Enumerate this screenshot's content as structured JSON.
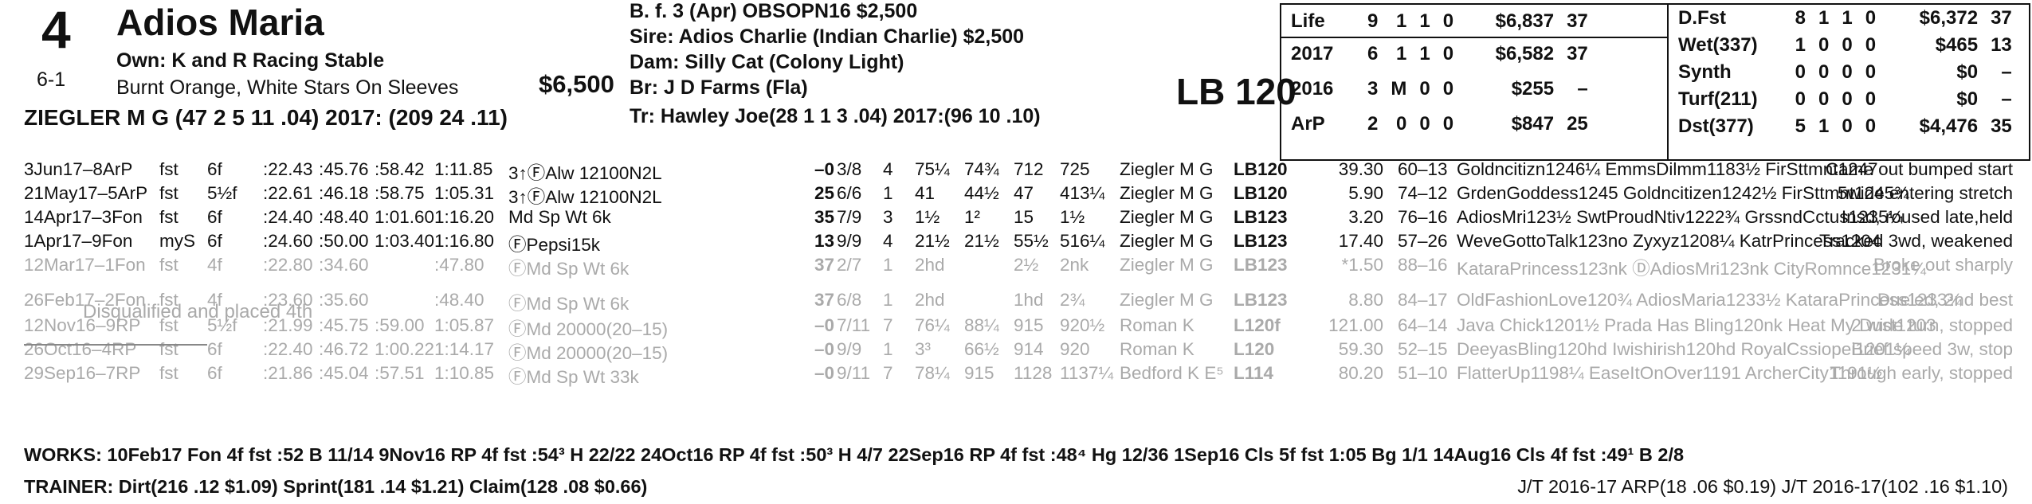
{
  "header": {
    "program_number": "4",
    "horse_name": "Adios Maria",
    "morning_line": "6-1",
    "owner": "Own: K and R Racing Stable",
    "silks": "Burnt Orange, White Stars On Sleeves",
    "price": "$6,500",
    "jockey": "ZIEGLER M G (47 2 5 11 .04) 2017: (209 24 .11)",
    "breeding_line": "B. f. 3 (Apr) OBSOPN16 $2,500",
    "sire": "Sire: Adios Charlie (Indian Charlie) $2,500",
    "dam": "Dam: Silly Cat (Colony Light)",
    "breeder": "Br:   J D Farms (Fla)",
    "trainer_line": "Tr:    Hawley Joe(28 1 1 3 .04)  2017:(96 10 .10)",
    "med_weight": "LB 120"
  },
  "record_left": [
    {
      "label": "Life",
      "starts": "9",
      "w": "1",
      "p": "1",
      "s": "0",
      "earn": "$6,837",
      "spd": "37"
    },
    {
      "label": "2017",
      "starts": "6",
      "w": "1",
      "p": "1",
      "s": "0",
      "earn": "$6,582",
      "spd": "37"
    },
    {
      "label": "2016",
      "starts": "3",
      "w": "M",
      "p": "0",
      "s": "0",
      "earn": "$255",
      "spd": "–"
    },
    {
      "label": "ArP",
      "starts": "2",
      "w": "0",
      "p": "0",
      "s": "0",
      "earn": "$847",
      "spd": "25"
    }
  ],
  "record_right": [
    {
      "label": "D.Fst",
      "starts": "8",
      "w": "1",
      "p": "1",
      "s": "0",
      "earn": "$6,372",
      "spd": "37"
    },
    {
      "label": "Wet(337)",
      "starts": "1",
      "w": "0",
      "p": "0",
      "s": "0",
      "earn": "$465",
      "spd": "13"
    },
    {
      "label": "Synth",
      "starts": "0",
      "w": "0",
      "p": "0",
      "s": "0",
      "earn": "$0",
      "spd": "–"
    },
    {
      "label": "Turf(211)",
      "starts": "0",
      "w": "0",
      "p": "0",
      "s": "0",
      "earn": "$0",
      "spd": "–"
    },
    {
      "label": "Dst(377)",
      "starts": "5",
      "w": "1",
      "p": "0",
      "s": "0",
      "earn": "$4,476",
      "spd": "35"
    }
  ],
  "past_performances": [
    {
      "date": "3Jun17–8ArP",
      "trk": "fst",
      "dist": "6f",
      "f1": ":22.43",
      ":f2": "",
      "f2": ":45.76",
      "f3": ":58.42",
      "fin": "1:11.85",
      "race": "3↑ⒻAlw 12100N2L",
      "bsf": "–0",
      "pp": "3/8",
      "st": "4",
      "c1": "75¼",
      "c2": "74¾",
      "str": "712",
      "fn": "725",
      "jock": "Ziegler M G",
      "med": "LB120",
      "odds": "39.30",
      "pace": "60–13",
      "top3": "Goldncitizn1246¼ EmmsDilmm1183½ FirSttmnt1247",
      "comment": "Came out bumped start",
      "gray": false
    },
    {
      "date": "21May17–5ArP",
      "trk": "fst",
      "dist": "5½f",
      "f1": ":22.61",
      "f2": ":46.18",
      "f3": ":58.75",
      "fin": "1:05.31",
      "race": "3↑ⒻAlw 12100N2L",
      "bsf": "25",
      "pp": "6/6",
      "st": "1",
      "c1": "41",
      "c2": "44½",
      "str": "47",
      "fn": "413¼",
      "jock": "Ziegler M G",
      "med": "LB120",
      "odds": "5.90",
      "pace": "74–12",
      "top3": "GrdenGoddess1245 Goldncitizen1242½ FirSttmnt1245¾",
      "comment": "5wide entering stretch",
      "gray": false
    },
    {
      "date": "14Apr17–3Fon",
      "trk": "fst",
      "dist": "6f",
      "f1": ":24.40",
      "f2": ":48.40",
      "f3": "1:01.60",
      "fin": "1:16.20",
      "race": "Md Sp Wt 6k",
      "bsf": "35",
      "pp": "7/9",
      "st": "3",
      "c1": "1½",
      "c2": "1²",
      "str": "15",
      "fn": "1½",
      "jock": "Ziegler M G",
      "med": "LB123",
      "odds": "3.20",
      "pace": "76–16",
      "top3": "AdiosMri123½ SwtProudNtiv1222¾ GrssndCctus1235¼",
      "comment": "Insd, roused late,held",
      "gray": false
    },
    {
      "date": "1Apr17–9Fon",
      "trk": "myS",
      "dist": "6f",
      "f1": ":24.60",
      "f2": ":50.00",
      "f3": "1:03.40",
      "fin": "1:16.80",
      "race": "ⒻPepsi15k",
      "bsf": "13",
      "pp": "9/9",
      "st": "4",
      "c1": "21½",
      "c2": "21½",
      "str": "55½",
      "fn": "516¼",
      "jock": "Ziegler M G",
      "med": "LB123",
      "odds": "17.40",
      "pace": "57–26",
      "top3": "WeveGottoTalk123no Zyxyz1208¼ KatrPrincess1204",
      "comment": "Tracked 3wd, weakened",
      "gray": false
    },
    {
      "date": "12Mar17–1Fon",
      "trk": "fst",
      "dist": "4f",
      "f1": ":22.80",
      "f2": ":34.60",
      "f3": "",
      "fin": ":47.80",
      "race": "ⒻMd Sp Wt 6k",
      "bsf": "37",
      "pp": "2/7",
      "st": "1",
      "c1": "2hd",
      "c2": "",
      "str": "2½",
      "fn": "2nk",
      "jock": "Ziegler M G",
      "med": "LB123",
      "odds": "*1.50",
      "pace": "88–16",
      "top3": "KataraPrincess123nk ⒹAdiosMri123nk CityRomnce1231¼",
      "comment": "Broke out sharply",
      "gray": true
    },
    {
      "date": "26Feb17–2Fon",
      "trk": "fst",
      "dist": "4f",
      "f1": ":23.60",
      "f2": ":35.60",
      "f3": "",
      "fin": ":48.40",
      "race": "ⒻMd Sp Wt 6k",
      "bsf": "37",
      "pp": "6/8",
      "st": "1",
      "c1": "2hd",
      "c2": "",
      "str": "1hd",
      "fn": "2¾",
      "jock": "Ziegler M G",
      "med": "LB123",
      "odds": "8.80",
      "pace": "84–17",
      "top3": "OldFashionLove120¾ AdiosMaria1233½ KataraPrincess1233¾",
      "comment": "Dueled, 2nd best",
      "gray": true
    },
    {
      "date": "12Nov16–9RP",
      "trk": "fst",
      "dist": "5½f",
      "f1": ":21.99",
      "f2": ":45.75",
      "f3": ":59.00",
      "fin": "1:05.87",
      "race": "ⒻMd 20000(20–15)",
      "bsf": "–0",
      "pp": "7/11",
      "st": "7",
      "c1": "76¼",
      "c2": "88¼",
      "str": "915",
      "fn": "920½",
      "jock": "Roman K",
      "med": "L120f",
      "odds": "121.00",
      "pace": "64–14",
      "top3": "Java Chick1201½ Prada Has Bling120nk Heat My Dust1203",
      "comment": "2 wide turn, stopped",
      "gray": true
    },
    {
      "date": "26Oct16–4RP",
      "trk": "fst",
      "dist": "6f",
      "f1": ":22.40",
      "f2": ":46.72",
      "f3": "1:00.22",
      "fin": "1:14.17",
      "race": "ⒻMd 20000(20–15)",
      "bsf": "–0",
      "pp": "9/9",
      "st": "1",
      "c1": "3³",
      "c2": "66½",
      "str": "914",
      "fn": "920",
      "jock": "Roman K",
      "med": "L120",
      "odds": "59.30",
      "pace": "52–15",
      "top3": "DeeyasBling120hd Iwishirish120hd RoyalCssiopei1201¼",
      "comment": "Brief speed 3w, stop",
      "gray": true
    },
    {
      "date": "29Sep16–7RP",
      "trk": "fst",
      "dist": "6f",
      "f1": ":21.86",
      "f2": ":45.04",
      "f3": ":57.51",
      "fin": "1:10.85",
      "race": "ⒻMd Sp Wt 33k",
      "bsf": "–0",
      "pp": "9/11",
      "st": "7",
      "c1": "78¼",
      "c2": "915",
      "str": "1128",
      "fn": "1137¼",
      "jock": "Bedford K E⁵",
      "med": "L114",
      "odds": "80.20",
      "pace": "51–10",
      "top3": "FlatterUp1198¼ EaseItOnOver1191 ArcherCity1191½",
      "comment": "Through early, stopped",
      "gray": true
    }
  ],
  "disqualified_note": "Disqualified and placed 4th",
  "works": "WORKS:    10Feb17 Fon 4f fst :52 B 11/14   9Nov16 RP 4f fst :54³ H 22/22   24Oct16 RP 4f fst :50³ H 4/7   22Sep16 RP 4f fst :48⁴ Hg 12/36   1Sep16 Cls 5f fst 1:05 Bg 1/1   14Aug16 Cls 4f fst :49¹ B 2/8",
  "trainer_stats": "TRAINER: Dirt(216 .12 $1.09) Sprint(181 .14 $1.21) Claim(128 .08 $0.66)",
  "jt_stats": "J/T 2016-17 ARP(18 .06 $0.19)  J/T 2016-17(102 .16 $1.10)"
}
